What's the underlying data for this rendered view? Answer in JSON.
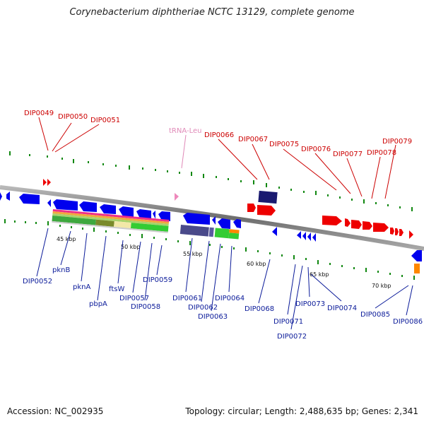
{
  "title": "Corynebacterium diphtheriae NCTC 13129, complete genome",
  "accession": "Accession: NC_002935",
  "topology": "Topology: circular; Length: 2,488,635 bp; Genes: 2,341",
  "colors": {
    "forward": "#ee0000",
    "reverse": "#0000ee",
    "backbone": "#808080",
    "trna": "#ee88bb",
    "tick": "#118811"
  },
  "kbp_labels": [
    "45 kbp",
    "50 kbp",
    "55 kbp",
    "60 kbp",
    "65 kbp",
    "70 kbp"
  ],
  "top_labels": [
    "DIP0049",
    "DIP0050",
    "DIP0051",
    "tRNA-Leu",
    "DIP0066",
    "DIP0067",
    "DIP0075",
    "DIP0076",
    "DIP0077",
    "DIP0078",
    "DIP0079"
  ],
  "bottom_labels": [
    "DIP0052",
    "pknB",
    "pknA",
    "pbpA",
    "ftsW",
    "DIP0057",
    "DIP0058",
    "DIP0059",
    "DIP0061",
    "DIP0062",
    "DIP0063",
    "DIP0064",
    "DIP0068",
    "DIP0071",
    "DIP0072",
    "DIP0073",
    "DIP0074",
    "DIP0085",
    "DIP0086"
  ]
}
